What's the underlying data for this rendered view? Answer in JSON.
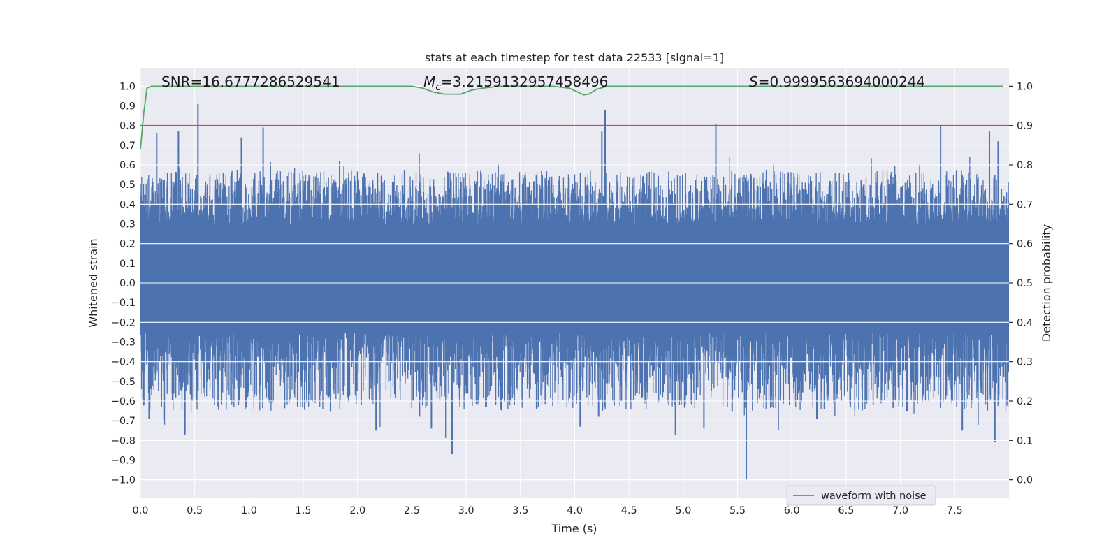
{
  "colors": {
    "background": "#eaeaf2",
    "grid": "#ffffff",
    "waveform": "#4c72b0",
    "threshold": "#c44e52",
    "probability": "#55a868",
    "text": "#262626"
  },
  "chart_data": {
    "type": "line",
    "title": "stats at each timestep for test data 22533 [signal=1]",
    "xlabel": "Time (s)",
    "ylabel": "Whitened strain",
    "y2label": "Detection probability",
    "xlim": [
      0.0,
      8.0
    ],
    "ylim": [
      -1.09,
      1.09
    ],
    "y2lim": [
      -0.045,
      1.045
    ],
    "xticks": [
      0.0,
      0.5,
      1.0,
      1.5,
      2.0,
      2.5,
      3.0,
      3.5,
      4.0,
      4.5,
      5.0,
      5.5,
      6.0,
      6.5,
      7.0,
      7.5
    ],
    "xtick_labels": [
      "0.0",
      "0.5",
      "1.0",
      "1.5",
      "2.0",
      "2.5",
      "3.0",
      "3.5",
      "4.0",
      "4.5",
      "5.0",
      "5.5",
      "6.0",
      "6.5",
      "7.0",
      "7.5"
    ],
    "yticks": [
      1.0,
      0.9,
      0.8,
      0.7,
      0.6,
      0.5,
      0.4,
      0.3,
      0.2,
      0.1,
      0.0,
      -0.1,
      -0.2,
      -0.3,
      -0.4,
      -0.5,
      -0.6,
      -0.7,
      -0.8,
      -0.9,
      -1.0
    ],
    "ytick_labels": [
      "1.0",
      "0.9",
      "0.8",
      "0.7",
      "0.6",
      "0.5",
      "0.4",
      "0.3",
      "0.2",
      "0.1",
      "0.0",
      "−0.1",
      "−0.2",
      "−0.3",
      "−0.4",
      "−0.5",
      "−0.6",
      "−0.7",
      "−0.8",
      "−0.9",
      "−1.0"
    ],
    "y2ticks": [
      1.0,
      0.9,
      0.8,
      0.7,
      0.6,
      0.5,
      0.4,
      0.3,
      0.2,
      0.1,
      0.0
    ],
    "y2tick_labels": [
      "1.0",
      "0.9",
      "0.8",
      "0.7",
      "0.6",
      "0.5",
      "0.4",
      "0.3",
      "0.2",
      "0.1",
      "0.0"
    ],
    "annotations": {
      "snr": "SNR=16.6777286529541",
      "mc_symbol": "M",
      "mc_sub": "c",
      "mc_value": "=3.2159132957458496",
      "s_symbol": "S",
      "s_value": "=0.9999563694000244"
    },
    "legend": {
      "placement": "lower-right",
      "entries": [
        "waveform with noise"
      ]
    },
    "threshold": {
      "axis": "y2",
      "value": 0.9
    },
    "series": [
      {
        "name": "waveform with noise",
        "axis": "y",
        "kind": "noise-waveform",
        "samples": 4096,
        "envelope_upper": 0.3,
        "envelope_lower": -0.25,
        "typical_peak": 0.45,
        "spikes": [
          {
            "x": 0.53,
            "y": 0.91
          },
          {
            "x": 0.53,
            "y": -0.55
          },
          {
            "x": 0.93,
            "y": 0.74
          },
          {
            "x": 1.13,
            "y": 0.79
          },
          {
            "x": 0.15,
            "y": 0.76
          },
          {
            "x": 0.35,
            "y": 0.77
          },
          {
            "x": 0.41,
            "y": -0.77
          },
          {
            "x": 0.22,
            "y": -0.72
          },
          {
            "x": 0.08,
            "y": -0.69
          },
          {
            "x": 2.17,
            "y": -0.75
          },
          {
            "x": 2.2,
            "y": -0.13
          },
          {
            "x": 2.87,
            "y": -0.87
          },
          {
            "x": 2.68,
            "y": -0.74
          },
          {
            "x": 2.57,
            "y": -0.68
          },
          {
            "x": 4.05,
            "y": -0.73
          },
          {
            "x": 4.22,
            "y": -0.68
          },
          {
            "x": 4.28,
            "y": 0.88
          },
          {
            "x": 4.25,
            "y": 0.77
          },
          {
            "x": 4.43,
            "y": -0.6
          },
          {
            "x": 5.3,
            "y": 0.81
          },
          {
            "x": 5.58,
            "y": -1.0
          },
          {
            "x": 5.19,
            "y": -0.74
          },
          {
            "x": 5.45,
            "y": -0.65
          },
          {
            "x": 6.23,
            "y": -0.69
          },
          {
            "x": 7.06,
            "y": -0.65
          },
          {
            "x": 7.1,
            "y": -0.14
          },
          {
            "x": 7.37,
            "y": 0.8
          },
          {
            "x": 7.57,
            "y": -0.75
          },
          {
            "x": 7.82,
            "y": 0.77
          },
          {
            "x": 7.87,
            "y": -0.81
          },
          {
            "x": 7.9,
            "y": 0.72
          }
        ]
      },
      {
        "name": "detection probability",
        "axis": "y2",
        "x": [
          0.0,
          0.03,
          0.06,
          0.1,
          0.2,
          2.5,
          2.6,
          2.7,
          2.8,
          2.95,
          3.05,
          3.15,
          3.3,
          3.8,
          3.95,
          4.03,
          4.08,
          4.13,
          4.2,
          4.3,
          7.6,
          7.95
        ],
        "values": [
          0.84,
          0.93,
          0.995,
          1.0,
          1.0,
          1.0,
          0.995,
          0.985,
          0.98,
          0.98,
          0.99,
          0.995,
          1.0,
          1.0,
          0.995,
          0.985,
          0.978,
          0.98,
          0.992,
          1.0,
          1.0,
          1.0
        ]
      },
      {
        "name": "threshold",
        "axis": "y2",
        "x": [
          0.0,
          8.0
        ],
        "values": [
          0.9,
          0.9
        ]
      }
    ]
  }
}
